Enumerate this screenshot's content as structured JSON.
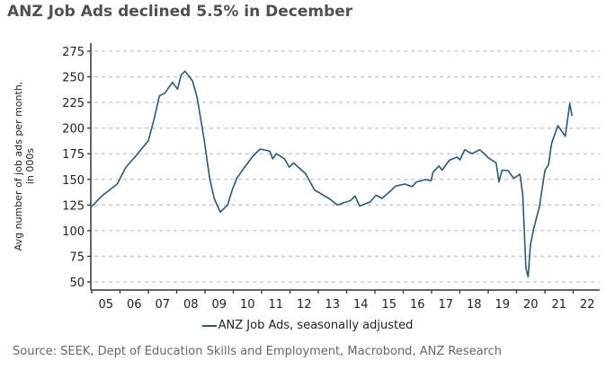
{
  "title": "ANZ Job Ads declined 5.5% in December",
  "source": "Source: SEEK, Dept of Education Skills and Employment, Macrobond, ANZ Research",
  "chart_data": {
    "type": "line",
    "title": "ANZ Job Ads declined 5.5% in December",
    "ylabel_lines": [
      "Avg number of job ads per month,",
      "in 000s"
    ],
    "xlabel": "",
    "ylim": [
      50,
      275
    ],
    "yticks": [
      50,
      75,
      100,
      125,
      150,
      175,
      200,
      225,
      250,
      275
    ],
    "xlim": [
      2005,
      2022.9
    ],
    "xtick_labels": [
      "05",
      "06",
      "07",
      "08",
      "09",
      "10",
      "11",
      "12",
      "13",
      "14",
      "15",
      "16",
      "17",
      "18",
      "19",
      "20",
      "21",
      "22"
    ],
    "grid": "horizontal dashed",
    "legend_placement": "bottom",
    "line_color": "#2c5877",
    "series": [
      {
        "name": "ANZ Job Ads, seasonally adjusted",
        "x": [
          2005.0,
          2005.36,
          2005.9,
          2006.2,
          2006.52,
          2007.0,
          2007.21,
          2007.39,
          2007.58,
          2007.85,
          2008.03,
          2008.16,
          2008.3,
          2008.56,
          2008.72,
          2008.96,
          2009.17,
          2009.33,
          2009.54,
          2009.8,
          2009.96,
          2010.12,
          2010.39,
          2010.7,
          2010.95,
          2011.29,
          2011.39,
          2011.52,
          2011.81,
          2011.97,
          2012.13,
          2012.55,
          2012.87,
          2013.4,
          2013.67,
          2013.83,
          2014.14,
          2014.3,
          2014.46,
          2014.83,
          2015.04,
          2015.25,
          2015.52,
          2015.73,
          2016.05,
          2016.31,
          2016.47,
          2016.79,
          2016.98,
          2017.05,
          2017.26,
          2017.37,
          2017.63,
          2017.9,
          2018.0,
          2018.17,
          2018.43,
          2018.7,
          2019.01,
          2019.28,
          2019.38,
          2019.49,
          2019.7,
          2019.9,
          2020.12,
          2020.22,
          2020.33,
          2020.41,
          2020.49,
          2020.6,
          2020.81,
          2021.0,
          2021.13,
          2021.24,
          2021.46,
          2021.72,
          2021.88,
          2021.96
        ],
        "values": [
          123.5,
          133.8,
          145.4,
          161.5,
          171.7,
          187.7,
          209.6,
          231.5,
          234,
          244.6,
          238,
          252,
          255.5,
          246,
          230,
          190.7,
          150,
          131,
          118,
          125,
          139.6,
          151,
          161.5,
          173,
          179.6,
          177.5,
          170,
          175,
          170,
          162,
          166,
          155.6,
          139.6,
          131,
          125,
          126.5,
          129.3,
          133.8,
          124,
          128,
          134.6,
          131.4,
          138,
          143.4,
          145.4,
          143,
          147.5,
          149.8,
          148.6,
          157,
          163,
          159,
          168.7,
          171.7,
          169,
          179,
          175,
          179,
          171,
          166,
          147.5,
          159,
          158.5,
          151,
          155,
          135,
          63.7,
          55,
          85.6,
          101.6,
          123.5,
          158.5,
          164.4,
          185.4,
          202.3,
          192,
          224,
          212
        ]
      }
    ]
  }
}
